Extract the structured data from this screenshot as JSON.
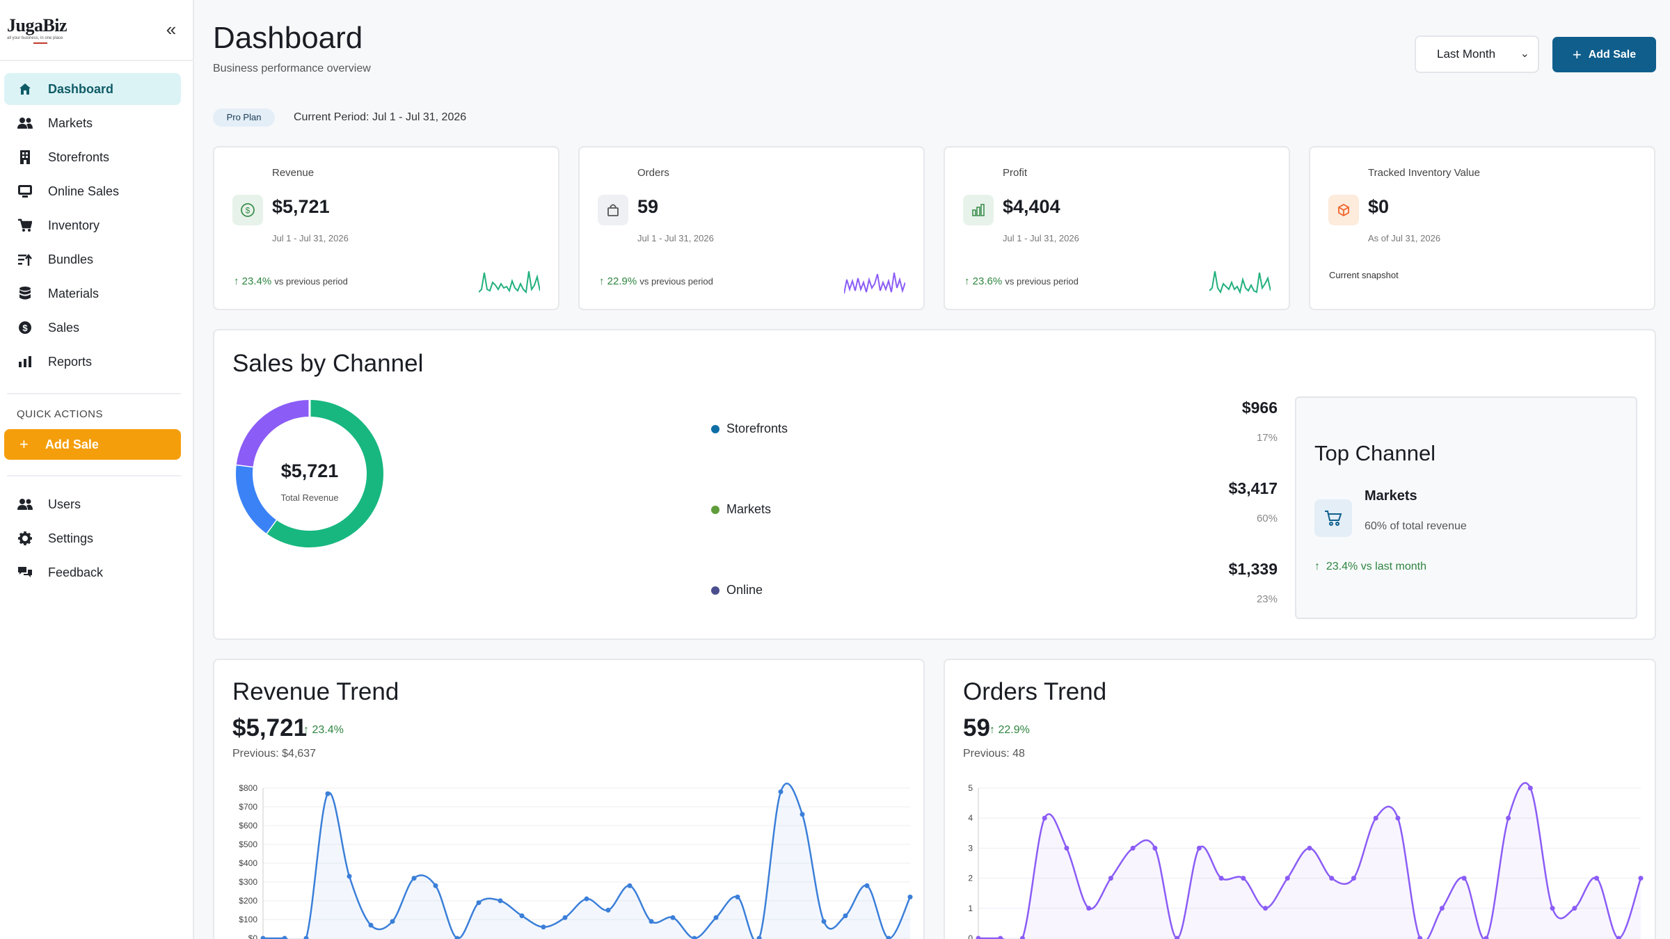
{
  "app": {
    "name": "JugaBiz",
    "tagline": "all your business, in one place"
  },
  "sidebar": {
    "items": [
      {
        "label": "Dashboard",
        "icon": "home-icon",
        "active": true
      },
      {
        "label": "Markets",
        "icon": "users-icon"
      },
      {
        "label": "Storefronts",
        "icon": "building-icon"
      },
      {
        "label": "Online Sales",
        "icon": "monitor-icon"
      },
      {
        "label": "Inventory",
        "icon": "cart-icon"
      },
      {
        "label": "Bundles",
        "icon": "bundles-icon"
      },
      {
        "label": "Materials",
        "icon": "database-icon"
      },
      {
        "label": "Sales",
        "icon": "dollar-circle-icon"
      },
      {
        "label": "Reports",
        "icon": "bar-chart-icon"
      }
    ],
    "quick_actions_title": "QUICK ACTIONS",
    "quick_add_label": "Add Sale",
    "bottom_items": [
      {
        "label": "Users",
        "icon": "users-icon"
      },
      {
        "label": "Settings",
        "icon": "gear-icon"
      },
      {
        "label": "Feedback",
        "icon": "chat-icon"
      }
    ]
  },
  "header": {
    "title": "Dashboard",
    "subtitle": "Business performance overview",
    "period_select": "Last Month",
    "add_button": "Add Sale",
    "plan": "Pro Plan",
    "current_period": "Current Period: Jul 1 - Jul 31, 2026"
  },
  "kpis": [
    {
      "label": "Revenue",
      "value": "$5,721",
      "date": "Jul 1 - Jul 31, 2026",
      "change": "23.4%",
      "vs": "vs previous period",
      "icon": "dollar-icon",
      "color": "#22b07d"
    },
    {
      "label": "Orders",
      "value": "59",
      "date": "Jul 1 - Jul 31, 2026",
      "change": "22.9%",
      "vs": "vs previous period",
      "icon": "bag-icon",
      "color": "#8b5cf6"
    },
    {
      "label": "Profit",
      "value": "$4,404",
      "date": "Jul 1 - Jul 31, 2026",
      "change": "23.6%",
      "vs": "vs previous period",
      "icon": "chart-icon",
      "color": "#22b07d"
    },
    {
      "label": "Tracked Inventory Value",
      "value": "$0",
      "date": "As of Jul 31, 2026",
      "note": "Current snapshot",
      "icon": "box-icon",
      "color": "#f97316"
    }
  ],
  "sales_by_channel": {
    "title": "Sales by Channel",
    "total": "$5,721",
    "total_label": "Total Revenue",
    "channels": [
      {
        "name": "Storefronts",
        "value": "$966",
        "pct": "17%",
        "color": "#0e6ea6"
      },
      {
        "name": "Markets",
        "value": "$3,417",
        "pct": "60%",
        "color": "#5f9c3b"
      },
      {
        "name": "Online",
        "value": "$1,339",
        "pct": "23%",
        "color": "#4a4e8e"
      }
    ],
    "donut": [
      {
        "share": 0.6,
        "color": "#18b780"
      },
      {
        "share": 0.17,
        "color": "#3b82f6"
      },
      {
        "share": 0.23,
        "color": "#8b5cf6"
      }
    ],
    "top": {
      "title": "Top Channel",
      "name": "Markets",
      "pct_text": "60% of total revenue",
      "growth": "23.4% vs last month"
    }
  },
  "revenue_trend": {
    "title": "Revenue Trend",
    "value": "$5,721",
    "change": "23.4%",
    "previous": "Previous: $4,637"
  },
  "orders_trend": {
    "title": "Orders Trend",
    "value": "59",
    "change": "22.9%",
    "previous": "Previous: 48"
  },
  "chart_data": [
    {
      "type": "line",
      "ylim": [
        0,
        800
      ],
      "yticks": [
        "$0",
        "$100",
        "$200",
        "$300",
        "$400",
        "$500",
        "$600",
        "$700",
        "$800"
      ],
      "series": [
        {
          "values": [
            0,
            0,
            0,
            770,
            330,
            70,
            90,
            320,
            280,
            0,
            190,
            200,
            120,
            60,
            110,
            210,
            150,
            280,
            90,
            110,
            0,
            110,
            220,
            0,
            780,
            660,
            90,
            120,
            280,
            0,
            220
          ],
          "color": "#3b7fd9"
        }
      ]
    },
    {
      "type": "line",
      "ylim": [
        0,
        5
      ],
      "yticks": [
        "0",
        "1",
        "2",
        "3",
        "4",
        "5"
      ],
      "series": [
        {
          "values": [
            0,
            0,
            0,
            4,
            3,
            1,
            2,
            3,
            3,
            0,
            3,
            2,
            2,
            1,
            2,
            3,
            2,
            2,
            4,
            4,
            0,
            1,
            2,
            0,
            4,
            5,
            1,
            1,
            2,
            0,
            2
          ],
          "color": "#8b5cf6"
        }
      ]
    }
  ]
}
